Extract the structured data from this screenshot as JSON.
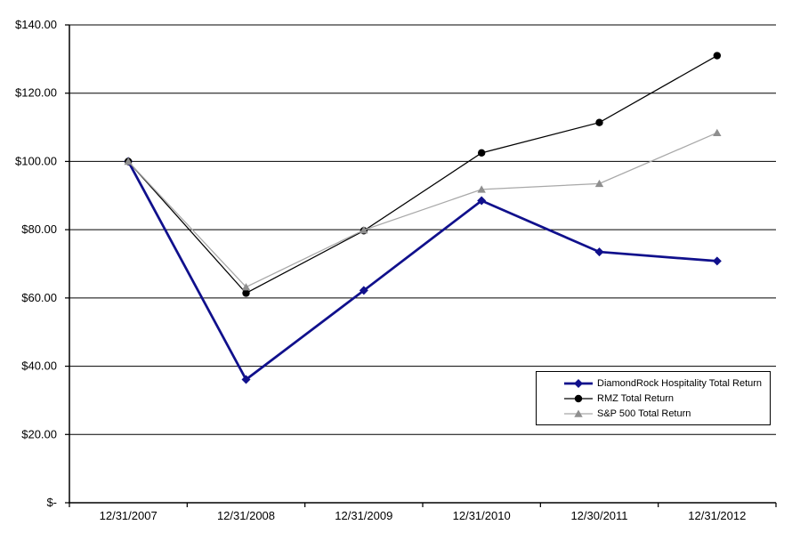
{
  "chart_data": {
    "type": "line",
    "title": "",
    "xlabel": "",
    "ylabel": "",
    "x_categories": [
      "12/31/2007",
      "12/31/2008",
      "12/31/2009",
      "12/31/2010",
      "12/30/2011",
      "12/31/2012"
    ],
    "series": [
      {
        "name": "DiamondRock Hospitality Total Return",
        "marker": "diamond",
        "color": "#10108C",
        "marker_color": "#10108C",
        "line_width": 2.75,
        "values": [
          100,
          36.1,
          62.2,
          88.5,
          73.5,
          70.8
        ]
      },
      {
        "name": "RMZ Total Return",
        "marker": "circle",
        "color": "#000000",
        "marker_color": "#000000",
        "line_width": 1.25,
        "values": [
          100,
          61.4,
          79.7,
          102.5,
          111.4,
          131.0
        ]
      },
      {
        "name": "S&P 500 Total Return",
        "marker": "triangle",
        "color": "#A8A8A8",
        "marker_color": "#8F8F8F",
        "line_width": 1.25,
        "values": [
          100,
          63.2,
          79.9,
          91.8,
          93.5,
          108.4
        ]
      }
    ],
    "y_ticks": [
      {
        "value": 0,
        "label": "$-"
      },
      {
        "value": 20,
        "label": "$20.00"
      },
      {
        "value": 40,
        "label": "$40.00"
      },
      {
        "value": 60,
        "label": "$60.00"
      },
      {
        "value": 80,
        "label": "$80.00"
      },
      {
        "value": 100,
        "label": "$100.00"
      },
      {
        "value": 120,
        "label": "$120.00"
      },
      {
        "value": 140,
        "label": "$140.00"
      }
    ],
    "ylim": [
      0,
      140
    ],
    "grid": "horizontal",
    "legend_position": "inside-lower-right",
    "colors": {
      "background": "#FFFFFF",
      "axis": "#000000",
      "gridline": "#000000",
      "text": "#000000"
    }
  }
}
